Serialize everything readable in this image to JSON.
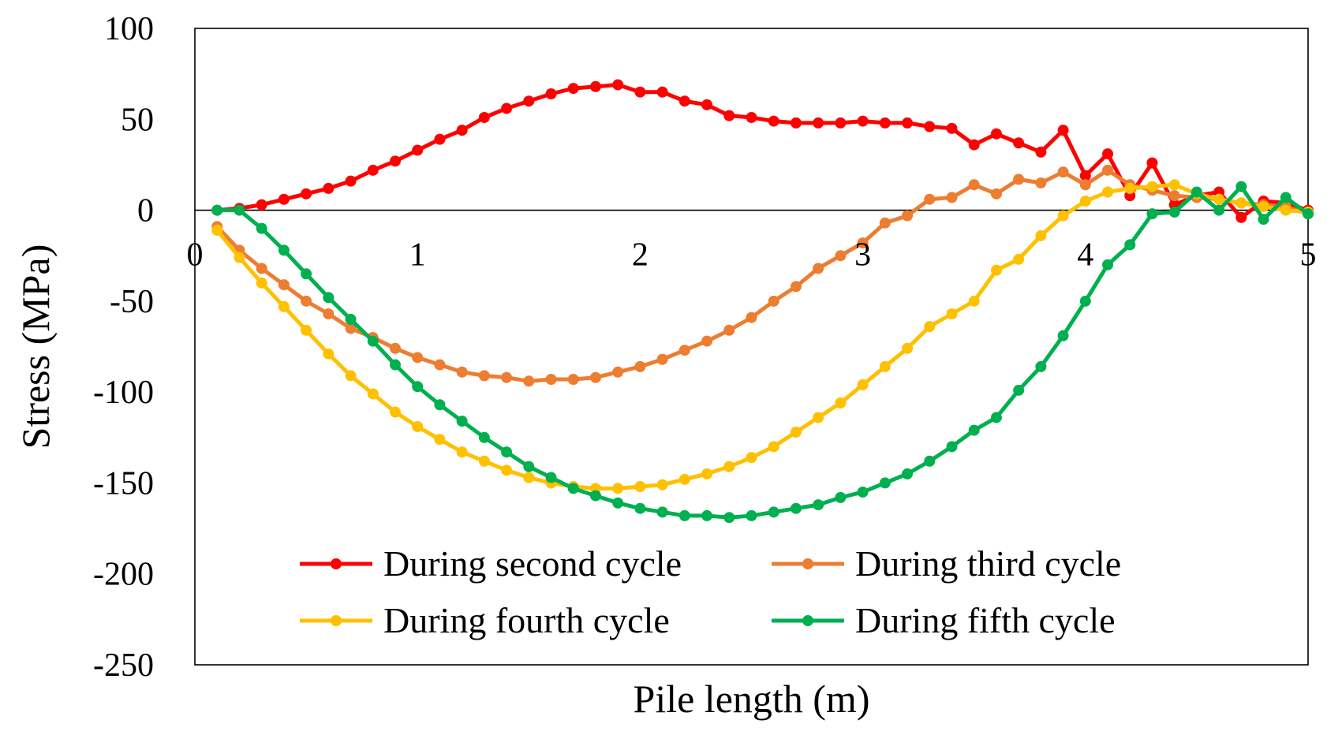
{
  "chart_data": {
    "type": "line",
    "title": "",
    "xlabel": "Pile length (m)",
    "ylabel": "Stress (MPa)",
    "xlim": [
      0,
      5
    ],
    "ylim": [
      -250,
      100
    ],
    "xticks": [
      0,
      1,
      2,
      3,
      4,
      5
    ],
    "xtick_labels": [
      "0",
      "1",
      "2",
      "3",
      "4",
      "5"
    ],
    "yticks": [
      100,
      50,
      0,
      -50,
      -100,
      -150,
      -200,
      -250
    ],
    "ytick_labels": [
      "100",
      "50",
      "0",
      "-50",
      "-100",
      "-150",
      "-200",
      "-250"
    ],
    "grid": false,
    "legend_position": "bottom-center",
    "x": [
      0.1,
      0.2,
      0.3,
      0.4,
      0.5,
      0.6,
      0.7,
      0.8,
      0.9,
      1.0,
      1.1,
      1.2,
      1.3,
      1.4,
      1.5,
      1.6,
      1.7,
      1.8,
      1.9,
      2.0,
      2.1,
      2.2,
      2.3,
      2.4,
      2.5,
      2.6,
      2.7,
      2.8,
      2.9,
      3.0,
      3.1,
      3.2,
      3.3,
      3.4,
      3.5,
      3.6,
      3.7,
      3.8,
      3.9,
      4.0,
      4.1,
      4.2,
      4.3,
      4.4,
      4.5,
      4.6,
      4.7,
      4.8,
      4.9,
      5.0
    ],
    "series": [
      {
        "name": "During second cycle",
        "color": "#ff0000",
        "values": [
          0,
          1,
          3,
          6,
          9,
          12,
          16,
          22,
          27,
          33,
          39,
          44,
          51,
          56,
          60,
          64,
          67,
          68,
          69,
          65,
          65,
          60,
          58,
          52,
          51,
          49,
          48,
          48,
          48,
          49,
          48,
          48,
          46,
          45,
          36,
          42,
          37,
          32,
          44,
          19,
          31,
          8,
          26,
          3,
          8,
          10,
          -4,
          5,
          4,
          0
        ]
      },
      {
        "name": "During third cycle",
        "color": "#ed7d31",
        "values": [
          -9,
          -22,
          -32,
          -41,
          -50,
          -57,
          -65,
          -70,
          -76,
          -81,
          -85,
          -89,
          -91,
          -92,
          -94,
          -93,
          -93,
          -92,
          -89,
          -86,
          -82,
          -77,
          -72,
          -66,
          -59,
          -50,
          -42,
          -32,
          -25,
          -18,
          -7,
          -3,
          6,
          7,
          14,
          9,
          17,
          15,
          21,
          14,
          22,
          14,
          11,
          8,
          7,
          6,
          4,
          3,
          2,
          -2
        ]
      },
      {
        "name": "During fourth cycle",
        "color": "#ffc000",
        "values": [
          -11,
          -26,
          -40,
          -53,
          -66,
          -79,
          -91,
          -101,
          -111,
          -119,
          -126,
          -133,
          -138,
          -143,
          -147,
          -150,
          -152,
          -153,
          -153,
          -152,
          -151,
          -148,
          -145,
          -141,
          -136,
          -130,
          -122,
          -114,
          -106,
          -96,
          -86,
          -76,
          -64,
          -57,
          -50,
          -33,
          -27,
          -14,
          -3,
          5,
          10,
          12,
          13,
          14,
          9,
          6,
          4,
          2,
          0,
          -1
        ]
      },
      {
        "name": "During fifth cycle",
        "color": "#00b050",
        "values": [
          0,
          0,
          -10,
          -22,
          -35,
          -48,
          -60,
          -72,
          -85,
          -97,
          -107,
          -116,
          -125,
          -133,
          -141,
          -147,
          -153,
          -157,
          -161,
          -164,
          -166,
          -168,
          -168,
          -169,
          -168,
          -166,
          -164,
          -162,
          -158,
          -155,
          -150,
          -145,
          -138,
          -130,
          -121,
          -114,
          -99,
          -86,
          -69,
          -50,
          -30,
          -19,
          -2,
          -1,
          10,
          0,
          13,
          -5,
          7,
          -2
        ]
      }
    ]
  }
}
